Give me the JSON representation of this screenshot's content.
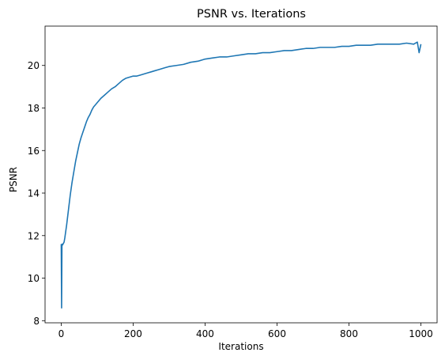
{
  "chart_data": {
    "type": "line",
    "title": "PSNR vs. Iterations",
    "xlabel": "Iterations",
    "ylabel": "PSNR",
    "xlim": [
      -45,
      1045
    ],
    "ylim": [
      7.9,
      21.85
    ],
    "xticks": [
      0,
      200,
      400,
      600,
      800,
      1000
    ],
    "yticks": [
      8,
      10,
      12,
      14,
      16,
      18,
      20
    ],
    "grid": false,
    "legend": "none",
    "line_color": "#1f77b4",
    "series": [
      {
        "x": [
          0,
          1,
          2,
          3,
          5,
          8,
          10,
          15,
          20,
          25,
          30,
          35,
          40,
          45,
          50,
          55,
          60,
          65,
          70,
          75,
          80,
          85,
          90,
          95,
          100,
          110,
          120,
          130,
          140,
          150,
          160,
          170,
          180,
          190,
          200,
          210,
          220,
          230,
          240,
          250,
          260,
          270,
          280,
          290,
          300,
          320,
          340,
          360,
          380,
          400,
          420,
          440,
          460,
          480,
          500,
          520,
          540,
          560,
          580,
          600,
          620,
          640,
          660,
          680,
          700,
          720,
          740,
          760,
          780,
          800,
          820,
          840,
          860,
          880,
          900,
          920,
          940,
          960,
          980,
          990,
          995,
          1000
        ],
        "y": [
          11.6,
          8.6,
          11.6,
          11.55,
          11.6,
          11.7,
          11.9,
          12.5,
          13.2,
          13.9,
          14.5,
          15.0,
          15.5,
          15.9,
          16.3,
          16.6,
          16.85,
          17.1,
          17.35,
          17.55,
          17.7,
          17.9,
          18.05,
          18.15,
          18.25,
          18.45,
          18.6,
          18.75,
          18.9,
          19.0,
          19.15,
          19.3,
          19.4,
          19.45,
          19.5,
          19.5,
          19.55,
          19.6,
          19.65,
          19.7,
          19.75,
          19.8,
          19.85,
          19.9,
          19.95,
          20.0,
          20.05,
          20.15,
          20.2,
          20.3,
          20.35,
          20.4,
          20.4,
          20.45,
          20.5,
          20.55,
          20.55,
          20.6,
          20.6,
          20.65,
          20.7,
          20.7,
          20.75,
          20.8,
          20.8,
          20.85,
          20.85,
          20.85,
          20.9,
          20.9,
          20.95,
          20.95,
          20.95,
          21.0,
          21.0,
          21.0,
          21.0,
          21.05,
          21.0,
          21.1,
          20.6,
          21.0
        ]
      }
    ]
  }
}
